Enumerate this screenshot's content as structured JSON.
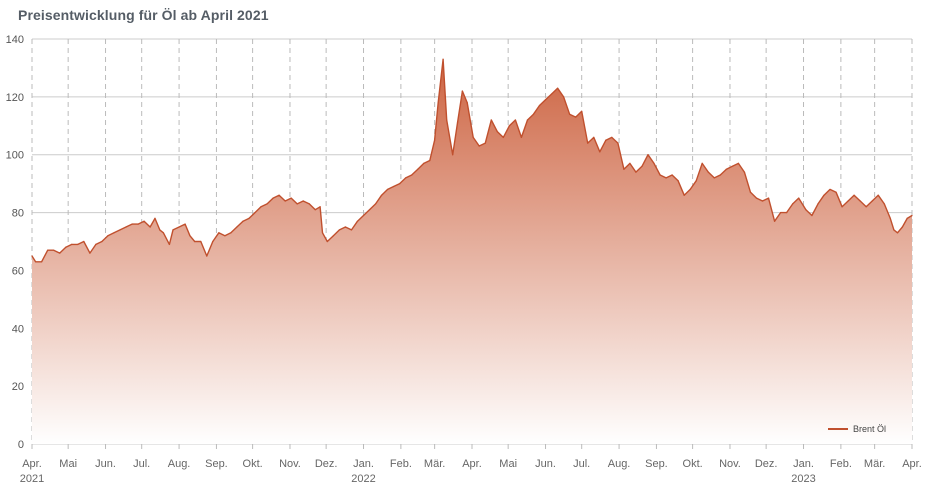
{
  "title": "Preisentwicklung für Öl ab April 2021",
  "chart_data": {
    "type": "area",
    "title": "Preisentwicklung für Öl ab April 2021",
    "xlabel": "",
    "ylabel": "",
    "ylim": [
      0,
      140
    ],
    "y_ticks": [
      0,
      20,
      40,
      60,
      80,
      100,
      120,
      140
    ],
    "x_range": [
      "2021-04-01",
      "2023-04-01"
    ],
    "x_ticks": [
      {
        "date": "2021-04-01",
        "label": "Apr.",
        "year": "2021"
      },
      {
        "date": "2021-05-01",
        "label": "Mai",
        "year": ""
      },
      {
        "date": "2021-06-01",
        "label": "Jun.",
        "year": ""
      },
      {
        "date": "2021-07-01",
        "label": "Jul.",
        "year": ""
      },
      {
        "date": "2021-08-01",
        "label": "Aug.",
        "year": ""
      },
      {
        "date": "2021-09-01",
        "label": "Sep.",
        "year": ""
      },
      {
        "date": "2021-10-01",
        "label": "Okt.",
        "year": ""
      },
      {
        "date": "2021-11-01",
        "label": "Nov.",
        "year": ""
      },
      {
        "date": "2021-12-01",
        "label": "Dez.",
        "year": ""
      },
      {
        "date": "2022-01-01",
        "label": "Jan.",
        "year": "2022"
      },
      {
        "date": "2022-02-01",
        "label": "Feb.",
        "year": ""
      },
      {
        "date": "2022-03-01",
        "label": "Mär.",
        "year": ""
      },
      {
        "date": "2022-04-01",
        "label": "Apr.",
        "year": ""
      },
      {
        "date": "2022-05-01",
        "label": "Mai",
        "year": ""
      },
      {
        "date": "2022-06-01",
        "label": "Jun.",
        "year": ""
      },
      {
        "date": "2022-07-01",
        "label": "Jul.",
        "year": ""
      },
      {
        "date": "2022-08-01",
        "label": "Aug.",
        "year": ""
      },
      {
        "date": "2022-09-01",
        "label": "Sep.",
        "year": ""
      },
      {
        "date": "2022-10-01",
        "label": "Okt.",
        "year": ""
      },
      {
        "date": "2022-11-01",
        "label": "Nov.",
        "year": ""
      },
      {
        "date": "2022-12-01",
        "label": "Dez.",
        "year": ""
      },
      {
        "date": "2023-01-01",
        "label": "Jan.",
        "year": "2023"
      },
      {
        "date": "2023-02-01",
        "label": "Feb.",
        "year": ""
      },
      {
        "date": "2023-03-01",
        "label": "Mär.",
        "year": ""
      },
      {
        "date": "2023-04-01",
        "label": "Apr.",
        "year": ""
      }
    ],
    "grid": true,
    "legend_position": "bottom-right",
    "colors": {
      "line": "#c0502e",
      "fill_top": "#cd6442",
      "fill_bottom": "#ffffff",
      "grid": "#cccccc"
    },
    "series": [
      {
        "name": "Brent Öl",
        "points": [
          [
            "2021-04-01",
            65
          ],
          [
            "2021-04-04",
            63
          ],
          [
            "2021-04-09",
            63
          ],
          [
            "2021-04-14",
            67
          ],
          [
            "2021-04-19",
            67
          ],
          [
            "2021-04-24",
            66
          ],
          [
            "2021-04-29",
            68
          ],
          [
            "2021-05-04",
            69
          ],
          [
            "2021-05-09",
            69
          ],
          [
            "2021-05-14",
            70
          ],
          [
            "2021-05-19",
            66
          ],
          [
            "2021-05-24",
            69
          ],
          [
            "2021-05-29",
            70
          ],
          [
            "2021-06-03",
            72
          ],
          [
            "2021-06-08",
            73
          ],
          [
            "2021-06-13",
            74
          ],
          [
            "2021-06-18",
            75
          ],
          [
            "2021-06-23",
            76
          ],
          [
            "2021-06-28",
            76
          ],
          [
            "2021-07-03",
            77
          ],
          [
            "2021-07-08",
            75
          ],
          [
            "2021-07-12",
            78
          ],
          [
            "2021-07-16",
            74
          ],
          [
            "2021-07-19",
            73
          ],
          [
            "2021-07-24",
            69
          ],
          [
            "2021-07-27",
            74
          ],
          [
            "2021-08-01",
            75
          ],
          [
            "2021-08-06",
            76
          ],
          [
            "2021-08-10",
            72
          ],
          [
            "2021-08-14",
            70
          ],
          [
            "2021-08-19",
            70
          ],
          [
            "2021-08-24",
            65
          ],
          [
            "2021-08-29",
            70
          ],
          [
            "2021-09-03",
            73
          ],
          [
            "2021-09-08",
            72
          ],
          [
            "2021-09-13",
            73
          ],
          [
            "2021-09-18",
            75
          ],
          [
            "2021-09-23",
            77
          ],
          [
            "2021-09-28",
            78
          ],
          [
            "2021-10-03",
            80
          ],
          [
            "2021-10-08",
            82
          ],
          [
            "2021-10-13",
            83
          ],
          [
            "2021-10-18",
            85
          ],
          [
            "2021-10-23",
            86
          ],
          [
            "2021-10-28",
            84
          ],
          [
            "2021-11-02",
            85
          ],
          [
            "2021-11-07",
            83
          ],
          [
            "2021-11-12",
            84
          ],
          [
            "2021-11-17",
            83
          ],
          [
            "2021-11-22",
            81
          ],
          [
            "2021-11-26",
            82
          ],
          [
            "2021-11-28",
            73
          ],
          [
            "2021-12-02",
            70
          ],
          [
            "2021-12-07",
            72
          ],
          [
            "2021-12-12",
            74
          ],
          [
            "2021-12-17",
            75
          ],
          [
            "2021-12-22",
            74
          ],
          [
            "2021-12-27",
            77
          ],
          [
            "2022-01-01",
            79
          ],
          [
            "2022-01-06",
            81
          ],
          [
            "2022-01-11",
            83
          ],
          [
            "2022-01-16",
            86
          ],
          [
            "2022-01-21",
            88
          ],
          [
            "2022-01-26",
            89
          ],
          [
            "2022-01-31",
            90
          ],
          [
            "2022-02-05",
            92
          ],
          [
            "2022-02-10",
            93
          ],
          [
            "2022-02-15",
            95
          ],
          [
            "2022-02-20",
            97
          ],
          [
            "2022-02-25",
            98
          ],
          [
            "2022-03-01",
            105
          ],
          [
            "2022-03-04",
            118
          ],
          [
            "2022-03-08",
            133
          ],
          [
            "2022-03-11",
            112
          ],
          [
            "2022-03-16",
            100
          ],
          [
            "2022-03-20",
            111
          ],
          [
            "2022-03-24",
            122
          ],
          [
            "2022-03-28",
            118
          ],
          [
            "2022-04-02",
            106
          ],
          [
            "2022-04-07",
            103
          ],
          [
            "2022-04-12",
            104
          ],
          [
            "2022-04-17",
            112
          ],
          [
            "2022-04-22",
            108
          ],
          [
            "2022-04-27",
            106
          ],
          [
            "2022-05-02",
            110
          ],
          [
            "2022-05-07",
            112
          ],
          [
            "2022-05-12",
            106
          ],
          [
            "2022-05-17",
            112
          ],
          [
            "2022-05-22",
            114
          ],
          [
            "2022-05-27",
            117
          ],
          [
            "2022-06-01",
            119
          ],
          [
            "2022-06-06",
            121
          ],
          [
            "2022-06-11",
            123
          ],
          [
            "2022-06-16",
            120
          ],
          [
            "2022-06-21",
            114
          ],
          [
            "2022-06-26",
            113
          ],
          [
            "2022-07-01",
            115
          ],
          [
            "2022-07-06",
            104
          ],
          [
            "2022-07-11",
            106
          ],
          [
            "2022-07-16",
            101
          ],
          [
            "2022-07-21",
            105
          ],
          [
            "2022-07-26",
            106
          ],
          [
            "2022-07-31",
            104
          ],
          [
            "2022-08-05",
            95
          ],
          [
            "2022-08-10",
            97
          ],
          [
            "2022-08-15",
            94
          ],
          [
            "2022-08-20",
            96
          ],
          [
            "2022-08-25",
            100
          ],
          [
            "2022-08-30",
            97
          ],
          [
            "2022-09-04",
            93
          ],
          [
            "2022-09-09",
            92
          ],
          [
            "2022-09-14",
            93
          ],
          [
            "2022-09-19",
            91
          ],
          [
            "2022-09-24",
            86
          ],
          [
            "2022-09-29",
            88
          ],
          [
            "2022-10-04",
            91
          ],
          [
            "2022-10-09",
            97
          ],
          [
            "2022-10-14",
            94
          ],
          [
            "2022-10-19",
            92
          ],
          [
            "2022-10-24",
            93
          ],
          [
            "2022-10-29",
            95
          ],
          [
            "2022-11-03",
            96
          ],
          [
            "2022-11-08",
            97
          ],
          [
            "2022-11-13",
            94
          ],
          [
            "2022-11-18",
            87
          ],
          [
            "2022-11-23",
            85
          ],
          [
            "2022-11-28",
            84
          ],
          [
            "2022-12-03",
            85
          ],
          [
            "2022-12-08",
            77
          ],
          [
            "2022-12-13",
            80
          ],
          [
            "2022-12-18",
            80
          ],
          [
            "2022-12-23",
            83
          ],
          [
            "2022-12-28",
            85
          ],
          [
            "2023-01-03",
            81
          ],
          [
            "2023-01-08",
            79
          ],
          [
            "2023-01-13",
            83
          ],
          [
            "2023-01-18",
            86
          ],
          [
            "2023-01-23",
            88
          ],
          [
            "2023-01-28",
            87
          ],
          [
            "2023-02-02",
            82
          ],
          [
            "2023-02-07",
            84
          ],
          [
            "2023-02-12",
            86
          ],
          [
            "2023-02-17",
            84
          ],
          [
            "2023-02-22",
            82
          ],
          [
            "2023-02-27",
            84
          ],
          [
            "2023-03-04",
            86
          ],
          [
            "2023-03-09",
            83
          ],
          [
            "2023-03-14",
            78
          ],
          [
            "2023-03-17",
            74
          ],
          [
            "2023-03-20",
            73
          ],
          [
            "2023-03-24",
            75
          ],
          [
            "2023-03-28",
            78
          ],
          [
            "2023-04-01",
            79
          ]
        ]
      }
    ]
  }
}
